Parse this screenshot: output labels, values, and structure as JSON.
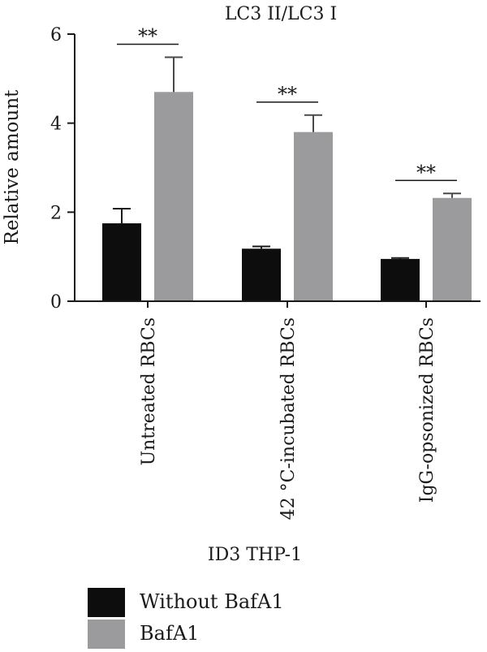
{
  "chart_data": {
    "type": "bar",
    "title": "LC3 II/LC3 I",
    "xlabel": "ID3 THP-1",
    "ylabel": "Relative amount",
    "ylim": [
      0,
      6
    ],
    "yticks": [
      "0",
      "2",
      "4",
      "6"
    ],
    "categories": [
      "Untreated RBCs",
      "42 °C-incubated RBCs",
      "IgG-opsonized RBCs"
    ],
    "series": [
      {
        "name": "Without BafA1",
        "color": "#0d0d0d",
        "values": [
          1.75,
          1.18,
          0.95
        ],
        "errors": [
          0.33,
          0.05,
          0.02
        ]
      },
      {
        "name": "BafA1",
        "color": "#9b9b9d",
        "values": [
          4.7,
          3.8,
          2.32
        ],
        "errors": [
          0.78,
          0.38,
          0.1
        ]
      }
    ],
    "significance": [
      "**",
      "**",
      "**"
    ],
    "grid": false,
    "legend_position": "bottom-left"
  }
}
